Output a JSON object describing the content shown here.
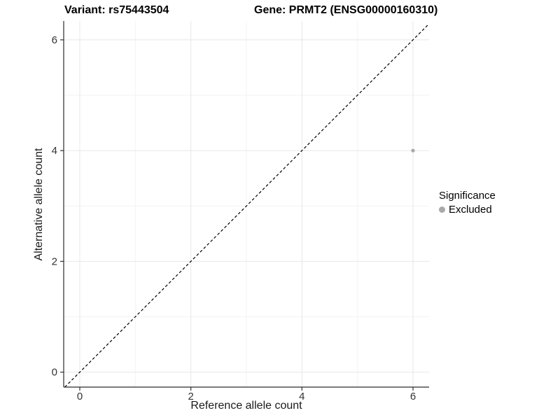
{
  "titles": {
    "variant": "Variant: rs75443504",
    "gene": "Gene: PRMT2 (ENSG00000160310)"
  },
  "chart_data": {
    "type": "scatter",
    "title": "Variant: rs75443504   Gene: PRMT2 (ENSG00000160310)",
    "xlabel": "Reference allele count",
    "ylabel": "Alternative allele count",
    "xlim": [
      -0.29,
      6.29
    ],
    "ylim": [
      -0.27,
      6.34
    ],
    "x_ticks": [
      0,
      2,
      4,
      6
    ],
    "y_ticks": [
      0,
      2,
      4,
      6
    ],
    "x_minor_ticks": [
      1,
      3,
      5
    ],
    "y_minor_ticks": [
      1,
      3,
      5
    ],
    "grid": true,
    "series": [
      {
        "name": "Excluded",
        "points": [
          {
            "x": 6,
            "y": 4
          }
        ]
      }
    ],
    "reference_line": {
      "kind": "identity",
      "slope": 1,
      "intercept": 0,
      "style": "dashed"
    },
    "legend": {
      "title": "Significance",
      "position": "right",
      "items": [
        {
          "label": "Excluded",
          "color": "#a9a9a9"
        }
      ]
    }
  },
  "colors": {
    "point": "#a9a9a9",
    "grid_major": "#e7e7e7",
    "grid_minor": "#f3f3f3",
    "axis_line": "#2b2b2b",
    "tick_mark": "#333333",
    "tick_label": "#333333",
    "abline": "#000000",
    "background": "#ffffff"
  }
}
